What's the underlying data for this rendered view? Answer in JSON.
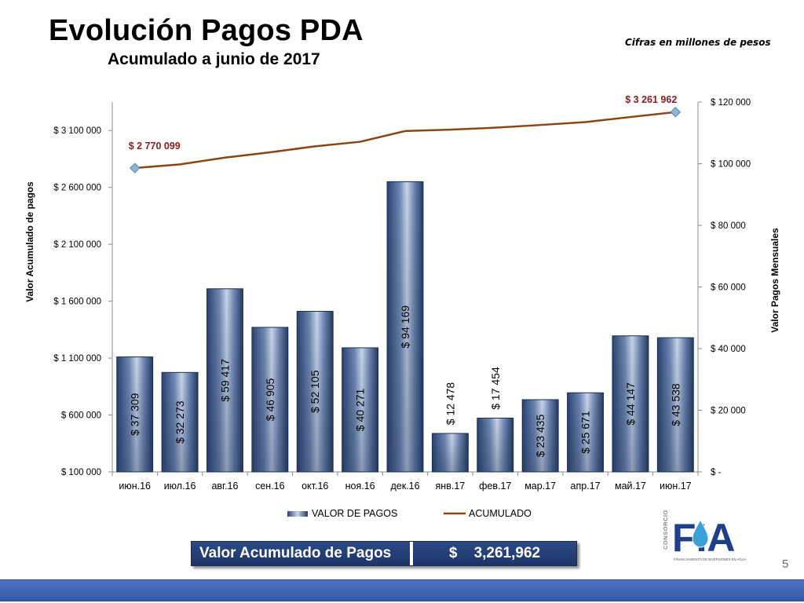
{
  "slide": {
    "title": "Evolución Pagos PDA",
    "subtitle": "Acumulado a junio de 2017",
    "note": "Cifras en millones de pesos",
    "page_number": "5"
  },
  "summary": {
    "label": "Valor Acumulado de Pagos",
    "currency": "$",
    "value": "3,261,962"
  },
  "logo": {
    "text": "FIA",
    "side_text": "CONSORCIO",
    "caption": "FINANCIAMIENTO DE INVERSIONES EN AGUA"
  },
  "colors": {
    "bar": "#3e5a8a",
    "bar_light": "#b9c8e0",
    "line": "#8b4513",
    "marker": "#8fb6d9",
    "label_red": "#8b1a1a",
    "summary_bg": "#24407a",
    "footer": "#4166b4"
  },
  "chart_data": {
    "type": "bar+line",
    "categories": [
      "июн.16",
      "июл.16",
      "авг.16",
      "сен.16",
      "окт.16",
      "ноя.16",
      "дек.16",
      "янв.17",
      "фев.17",
      "мар.17",
      "апр.17",
      "май.17",
      "июн.17"
    ],
    "series": [
      {
        "name": "VALOR DE PAGOS",
        "type": "bar",
        "axis": "right",
        "values": [
          37309,
          32273,
          59417,
          46905,
          52105,
          40271,
          94169,
          12478,
          17454,
          23435,
          25671,
          44147,
          43538
        ],
        "labels": [
          "$ 37 309",
          "$ 32 273",
          "$ 59 417",
          "$ 46 905",
          "$ 52 105",
          "$ 40 271",
          "$ 94 169",
          "$ 12 478",
          "$ 17 454",
          "$ 23 435",
          "$ 25 671",
          "$ 44 147",
          "$ 43 538"
        ]
      },
      {
        "name": "ACUMULADO",
        "type": "line",
        "axis": "left",
        "values": [
          2770099,
          2802372,
          2861789,
          2908694,
          2960799,
          3001070,
          3095239,
          3107717,
          3125171,
          3148606,
          3174277,
          3218424,
          3261962
        ],
        "labels": [
          "$ 2 770 099",
          "$ 3 261 962"
        ]
      }
    ],
    "ylabel_left": "Valor Acumulado de pagos",
    "ylabel_right": "Valor Pagos Mensuales",
    "ylim_left": [
      100000,
      3350000
    ],
    "ylim_right": [
      0,
      120000
    ],
    "yticks_left": [
      "$ 100 000",
      "$ 600 000",
      "$ 1 100 000",
      "$ 1 600 000",
      "$ 2 100 000",
      "$ 2 600 000",
      "$ 3 100 000"
    ],
    "yticks_left_values": [
      100000,
      600000,
      1100000,
      1600000,
      2100000,
      2600000,
      3100000
    ],
    "yticks_right": [
      "$ -",
      "$ 20 000",
      "$ 40 000",
      "$ 60 000",
      "$ 80 000",
      "$ 100 000",
      "$ 120 000"
    ],
    "yticks_right_values": [
      0,
      20000,
      40000,
      60000,
      80000,
      100000,
      120000
    ],
    "legend_position": "bottom",
    "grid": false
  }
}
